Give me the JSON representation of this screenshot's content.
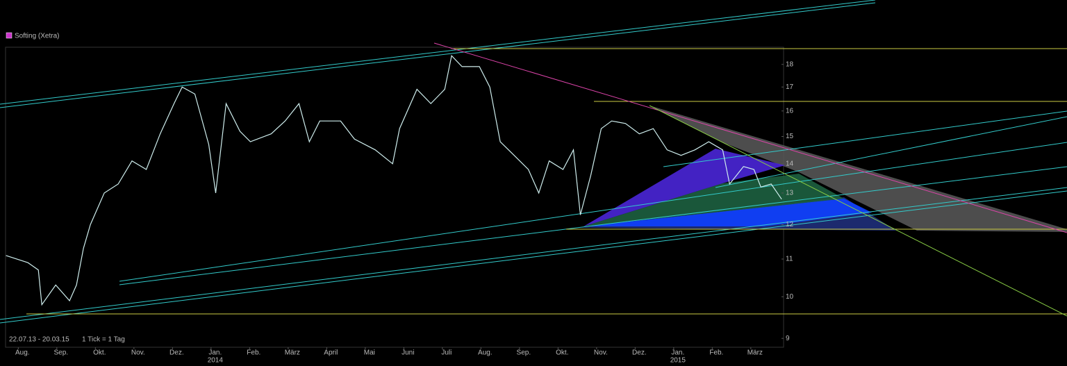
{
  "chart_data": {
    "type": "line",
    "title": "Softing (Xetra)",
    "date_range": "22.07.13 - 20.03.15",
    "tick_note": "1 Tick = 1 Tag",
    "color": "#cfeeee",
    "log_scale": true,
    "x": [
      -0.32,
      0.25,
      0.52,
      0.61,
      0.97,
      1.33,
      1.51,
      1.69,
      1.87,
      2.23,
      2.59,
      2.95,
      3.32,
      3.68,
      4.04,
      4.25,
      4.58,
      4.94,
      5.12,
      5.39,
      5.75,
      6.02,
      6.56,
      6.92,
      7.28,
      7.55,
      7.82,
      8.36,
      8.72,
      9.26,
      9.71,
      9.89,
      10.34,
      10.7,
      11.06,
      11.24,
      11.51,
      11.96,
      12.23,
      12.5,
      12.86,
      13.23,
      13.5,
      13.77,
      14.13,
      14.4,
      14.58,
      14.85,
      15.12,
      15.39,
      15.75,
      16.11,
      16.47,
      16.83,
      17.19,
      17.55,
      17.91,
      18.27,
      18.45,
      18.81,
      19.08,
      19.26,
      19.53,
      19.8
    ],
    "values": [
      11.1,
      10.9,
      10.7,
      9.8,
      10.3,
      9.9,
      10.3,
      11.3,
      12.0,
      13.0,
      13.3,
      14.1,
      13.8,
      15.1,
      16.3,
      17.0,
      16.7,
      14.7,
      13.0,
      16.3,
      15.2,
      14.8,
      15.1,
      15.6,
      16.3,
      14.8,
      15.6,
      15.6,
      14.9,
      14.5,
      14.0,
      15.3,
      16.9,
      16.3,
      16.9,
      18.4,
      17.9,
      17.9,
      17.0,
      14.8,
      14.3,
      13.8,
      13.0,
      14.1,
      13.8,
      14.5,
      12.3,
      13.6,
      15.3,
      15.6,
      15.5,
      15.1,
      15.3,
      14.5,
      14.3,
      14.5,
      14.8,
      14.5,
      13.3,
      13.9,
      13.8,
      13.2,
      13.3,
      12.8
    ],
    "xlim": [
      -0.33,
      19.85
    ],
    "xticks": [
      {
        "value": 0,
        "label": "Aug."
      },
      {
        "value": 1,
        "label": "Sep."
      },
      {
        "value": 2,
        "label": "Okt."
      },
      {
        "value": 3,
        "label": "Nov."
      },
      {
        "value": 4,
        "label": "Dez."
      },
      {
        "value": 5,
        "label": "Jan."
      },
      {
        "value": 6,
        "label": "Feb."
      },
      {
        "value": 7,
        "label": "März"
      },
      {
        "value": 8,
        "label": "April"
      },
      {
        "value": 9,
        "label": "Mai"
      },
      {
        "value": 10,
        "label": "Juni"
      },
      {
        "value": 11,
        "label": "Juli"
      },
      {
        "value": 12,
        "label": "Aug."
      },
      {
        "value": 13,
        "label": "Sep."
      },
      {
        "value": 14,
        "label": "Okt."
      },
      {
        "value": 15,
        "label": "Nov."
      },
      {
        "value": 16,
        "label": "Dez."
      },
      {
        "value": 17,
        "label": "Jan."
      },
      {
        "value": 18,
        "label": "Feb."
      },
      {
        "value": 19,
        "label": "März"
      }
    ],
    "year_labels": [
      {
        "value": 5,
        "label": "2014"
      },
      {
        "value": 17,
        "label": "2015"
      }
    ],
    "ylim": [
      8.8,
      18.8
    ],
    "yticks": [
      9,
      10,
      11,
      12,
      13,
      14,
      15,
      16,
      17,
      18
    ]
  }
}
